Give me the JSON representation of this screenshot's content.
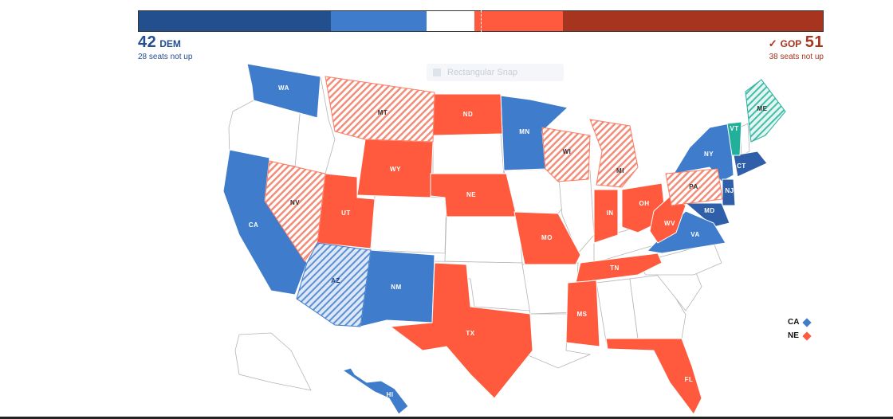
{
  "balance": {
    "segments": [
      {
        "party": "safe-dem",
        "seats": 28,
        "color": "#234f8e"
      },
      {
        "party": "lean-dem",
        "seats": 14,
        "color": "#3f7ccb"
      },
      {
        "party": "tossup",
        "seats": 7,
        "color": "#ffffff"
      },
      {
        "party": "lean-gop",
        "seats": 13,
        "color": "#ff5a3d"
      },
      {
        "party": "safe-gop",
        "seats": 38,
        "color": "#a6341e"
      }
    ]
  },
  "dem": {
    "count": "42",
    "label": "DEM",
    "subtitle": "28 seats not up"
  },
  "gop": {
    "check": "✓",
    "count": "51",
    "label": "GOP",
    "subtitle": "38 seats not up"
  },
  "snap_label": "Rectangular Snap",
  "colors": {
    "dem_solid": "#3f7ccb",
    "dem_dark": "#2f5fa9",
    "gop_solid": "#ff5a3d",
    "lean_gop_hatch": "#ffd2c8",
    "lean_dem_hatch": "#c5d9f3",
    "ind": "#23b09a",
    "ind_hatch": "#c6ece6",
    "no_race": "#ffffff",
    "border": "#b5b5b5"
  },
  "states": {
    "WA": {
      "label": "WA",
      "status": "dem"
    },
    "MT": {
      "label": "MT",
      "status": "lean-gop"
    },
    "ND": {
      "label": "ND",
      "status": "gop"
    },
    "MN": {
      "label": "MN",
      "status": "dem"
    },
    "WI": {
      "label": "WI",
      "status": "lean-gop"
    },
    "MI": {
      "label": "MI",
      "status": "lean-gop"
    },
    "ME": {
      "label": "ME",
      "status": "lean-ind"
    },
    "VT": {
      "label": "VT",
      "status": "ind"
    },
    "NY": {
      "label": "NY",
      "status": "dem"
    },
    "CT": {
      "label": "CT",
      "status": "dem"
    },
    "NJ": {
      "label": "NJ",
      "status": "dem"
    },
    "PA": {
      "label": "PA",
      "status": "lean-gop"
    },
    "MD": {
      "label": "MD",
      "status": "dem"
    },
    "VA": {
      "label": "VA",
      "status": "dem"
    },
    "WV": {
      "label": "WV",
      "status": "gop"
    },
    "OH": {
      "label": "OH",
      "status": "gop"
    },
    "IN": {
      "label": "IN",
      "status": "gop"
    },
    "WY": {
      "label": "WY",
      "status": "gop"
    },
    "NE": {
      "label": "NE",
      "status": "gop"
    },
    "NV": {
      "label": "NV",
      "status": "lean-gop"
    },
    "UT": {
      "label": "UT",
      "status": "gop"
    },
    "CA": {
      "label": "CA",
      "status": "dem"
    },
    "AZ": {
      "label": "AZ",
      "status": "lean-dem"
    },
    "NM": {
      "label": "NM",
      "status": "dem"
    },
    "MO": {
      "label": "MO",
      "status": "gop"
    },
    "TN": {
      "label": "TN",
      "status": "gop"
    },
    "MS": {
      "label": "MS",
      "status": "gop"
    },
    "TX": {
      "label": "TX",
      "status": "gop"
    },
    "FL": {
      "label": "FL",
      "status": "gop"
    },
    "HI": {
      "label": "HI",
      "status": "dem"
    }
  },
  "legend": [
    {
      "label": "CA",
      "color": "#3f7ccb"
    },
    {
      "label": "NE",
      "color": "#ff5a3d"
    }
  ]
}
